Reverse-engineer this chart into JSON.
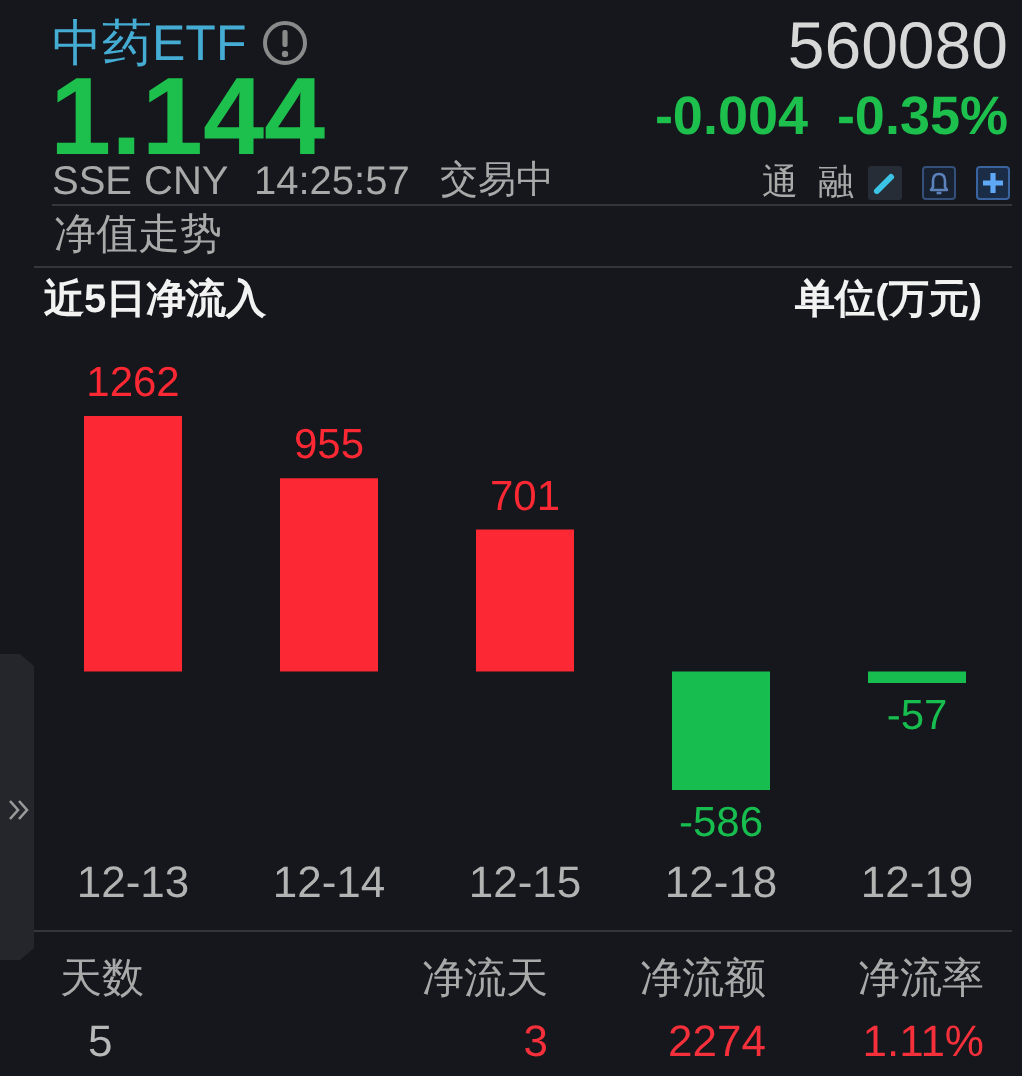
{
  "chart_data": {
    "type": "bar",
    "title": "近5日净流入",
    "subtitle": "单位(万元)",
    "categories": [
      "12-13",
      "12-14",
      "12-15",
      "12-18",
      "12-19"
    ],
    "values": [
      1262,
      955,
      701,
      -586,
      -57
    ],
    "colors": [
      "#fc2833",
      "#fc2833",
      "#fc2833",
      "#17bd4e",
      "#17bd4e"
    ],
    "data_labels": true,
    "annotations": [
      "中药ETF",
      "1.144",
      "560080",
      "-0.004",
      "-0.35%",
      "SSE",
      "CNY",
      "14:25:57",
      "交易中",
      "通",
      "融",
      "净值走势",
      "天数",
      "净流天",
      "净流额",
      "净流率",
      "5",
      "3",
      "2274",
      "1.11%"
    ]
  }
}
